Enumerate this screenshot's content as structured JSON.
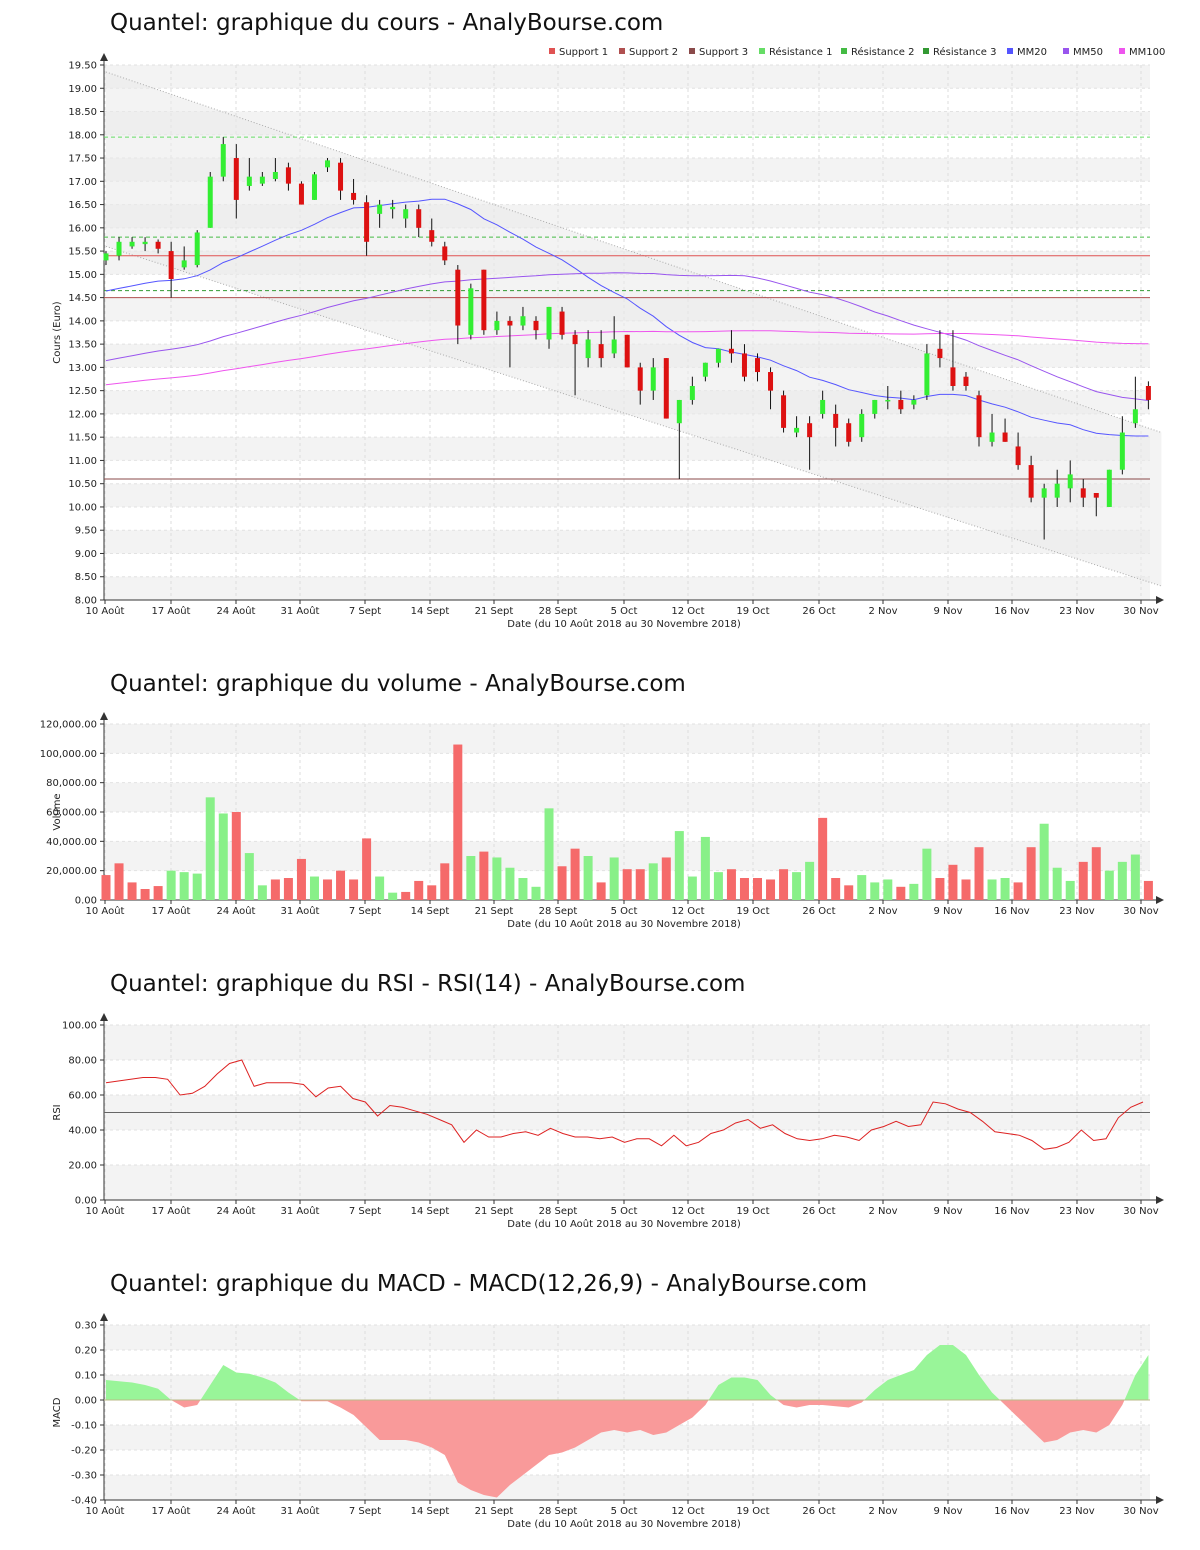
{
  "chart_data": [
    {
      "id": "price",
      "type": "candlestick",
      "title": "Quantel: graphique du cours - AnalyBourse.com",
      "ylabel": "Cours (Euro)",
      "xlabel": "Date (du 10 Août 2018 au 30 Novembre 2018)",
      "ylim": [
        8.0,
        19.5
      ],
      "yticks": [
        "19.50",
        "19.00",
        "18.50",
        "18.00",
        "17.50",
        "17.00",
        "16.50",
        "16.00",
        "15.50",
        "15.00",
        "14.50",
        "14.00",
        "13.50",
        "13.00",
        "12.50",
        "12.00",
        "11.50",
        "11.00",
        "10.50",
        "10.00",
        "9.50",
        "9.00",
        "8.50",
        "8.00"
      ],
      "xtick_labels": [
        "10 Août",
        "17 Août",
        "24 Août",
        "31 Août",
        "7 Sept",
        "14 Sept",
        "21 Sept",
        "28 Sept",
        "5 Oct",
        "12 Oct",
        "19 Oct",
        "26 Oct",
        "2 Nov",
        "9 Nov",
        "16 Nov",
        "23 Nov",
        "30 Nov"
      ],
      "legend": [
        {
          "name": "Support 1",
          "color": "#e05252"
        },
        {
          "name": "Support 2",
          "color": "#b05050"
        },
        {
          "name": "Support 3",
          "color": "#8a4a4a"
        },
        {
          "name": "Résistance 1",
          "color": "#66dd66"
        },
        {
          "name": "Résistance 2",
          "color": "#44bb44"
        },
        {
          "name": "Résistance 3",
          "color": "#339933"
        },
        {
          "name": "MM20",
          "color": "#5555ff"
        },
        {
          "name": "MM50",
          "color": "#9955ee"
        },
        {
          "name": "MM100",
          "color": "#ee55ee"
        }
      ],
      "legend_position": "top-right",
      "support_levels": [
        15.4,
        14.5,
        10.6
      ],
      "resistance_levels": [
        17.95,
        15.8,
        14.65
      ],
      "trend_channel": {
        "upper": [
          [
            0,
            19.35
          ],
          [
            81,
            11.6
          ]
        ],
        "lower": [
          [
            0,
            15.6
          ],
          [
            81,
            8.3
          ]
        ]
      },
      "candles": [
        [
          15.3,
          15.45,
          15.2,
          15.5
        ],
        [
          15.4,
          15.7,
          15.3,
          15.8
        ],
        [
          15.6,
          15.7,
          15.55,
          15.8
        ],
        [
          15.65,
          15.7,
          15.5,
          15.8
        ],
        [
          15.7,
          15.55,
          15.45,
          15.75
        ],
        [
          15.5,
          14.9,
          14.5,
          15.7
        ],
        [
          15.15,
          15.3,
          15.1,
          15.6
        ],
        [
          15.2,
          15.9,
          15.15,
          15.95
        ],
        [
          16.0,
          17.1,
          16.0,
          17.2
        ],
        [
          17.1,
          17.8,
          17.0,
          17.95
        ],
        [
          17.5,
          16.6,
          16.2,
          17.8
        ],
        [
          16.9,
          17.1,
          16.8,
          17.5
        ],
        [
          16.95,
          17.1,
          16.9,
          17.2
        ],
        [
          17.05,
          17.2,
          17.0,
          17.5
        ],
        [
          17.3,
          16.95,
          16.8,
          17.4
        ],
        [
          16.95,
          16.5,
          16.5,
          17.0
        ],
        [
          16.6,
          17.15,
          16.6,
          17.2
        ],
        [
          17.3,
          17.45,
          17.2,
          17.5
        ],
        [
          17.4,
          16.8,
          16.6,
          17.5
        ],
        [
          16.75,
          16.6,
          16.5,
          17.05
        ],
        [
          16.55,
          15.7,
          15.4,
          16.7
        ],
        [
          16.3,
          16.5,
          16.0,
          16.6
        ],
        [
          16.4,
          16.45,
          16.2,
          16.6
        ],
        [
          16.2,
          16.4,
          16.0,
          16.5
        ],
        [
          16.4,
          16.0,
          15.8,
          16.5
        ],
        [
          15.95,
          15.7,
          15.6,
          16.2
        ],
        [
          15.6,
          15.3,
          15.2,
          15.7
        ],
        [
          15.1,
          13.9,
          13.5,
          15.2
        ],
        [
          13.7,
          14.7,
          13.6,
          14.8
        ],
        [
          15.1,
          13.8,
          13.7,
          15.1
        ],
        [
          13.8,
          14.0,
          13.7,
          14.2
        ],
        [
          14.0,
          13.9,
          13.0,
          14.1
        ],
        [
          13.9,
          14.1,
          13.8,
          14.3
        ],
        [
          14.0,
          13.8,
          13.6,
          14.1
        ],
        [
          13.6,
          14.3,
          13.4,
          14.3
        ],
        [
          14.2,
          13.7,
          13.6,
          14.3
        ],
        [
          13.7,
          13.5,
          12.4,
          13.8
        ],
        [
          13.2,
          13.6,
          13.0,
          13.8
        ],
        [
          13.5,
          13.2,
          13.0,
          13.8
        ],
        [
          13.3,
          13.6,
          13.2,
          14.1
        ],
        [
          13.7,
          13.0,
          13.0,
          13.7
        ],
        [
          13.0,
          12.5,
          12.2,
          13.1
        ],
        [
          12.5,
          13.0,
          12.3,
          13.2
        ],
        [
          13.2,
          11.9,
          11.9,
          13.2
        ],
        [
          11.8,
          12.3,
          10.6,
          12.3
        ],
        [
          12.3,
          12.6,
          12.2,
          12.8
        ],
        [
          12.8,
          13.1,
          12.7,
          13.1
        ],
        [
          13.1,
          13.4,
          13.0,
          13.4
        ],
        [
          13.4,
          13.3,
          13.1,
          13.8
        ],
        [
          13.3,
          12.8,
          12.7,
          13.5
        ],
        [
          13.2,
          12.9,
          12.7,
          13.3
        ],
        [
          12.9,
          12.5,
          12.1,
          13.0
        ],
        [
          12.4,
          11.7,
          11.6,
          12.5
        ],
        [
          11.6,
          11.7,
          11.5,
          11.95
        ],
        [
          11.8,
          11.5,
          10.8,
          11.95
        ],
        [
          12.0,
          12.3,
          11.9,
          12.5
        ],
        [
          12.0,
          11.7,
          11.3,
          12.2
        ],
        [
          11.8,
          11.4,
          11.3,
          11.9
        ],
        [
          11.5,
          12.0,
          11.4,
          12.1
        ],
        [
          12.0,
          12.3,
          11.9,
          12.3
        ],
        [
          12.3,
          12.3,
          12.1,
          12.6
        ],
        [
          12.3,
          12.1,
          12.0,
          12.5
        ],
        [
          12.2,
          12.3,
          12.1,
          12.4
        ],
        [
          12.4,
          13.3,
          12.3,
          13.5
        ],
        [
          13.4,
          13.2,
          13.0,
          13.8
        ],
        [
          13.0,
          12.6,
          12.5,
          13.8
        ],
        [
          12.8,
          12.6,
          12.5,
          12.9
        ],
        [
          12.4,
          11.5,
          11.3,
          12.5
        ],
        [
          11.4,
          11.6,
          11.3,
          12.0
        ],
        [
          11.6,
          11.4,
          11.4,
          11.9
        ],
        [
          11.3,
          10.9,
          10.8,
          11.6
        ],
        [
          10.9,
          10.2,
          10.1,
          11.1
        ],
        [
          10.2,
          10.4,
          9.3,
          10.5
        ],
        [
          10.2,
          10.5,
          10.0,
          10.8
        ],
        [
          10.4,
          10.7,
          10.1,
          11.0
        ],
        [
          10.4,
          10.2,
          10.0,
          10.6
        ],
        [
          10.3,
          10.2,
          9.8,
          10.3
        ],
        [
          10.0,
          10.8,
          10.0,
          10.8
        ],
        [
          10.8,
          11.6,
          10.7,
          11.95
        ],
        [
          11.8,
          12.1,
          11.7,
          12.8
        ],
        [
          12.6,
          12.3,
          12.1,
          12.7
        ]
      ]
    },
    {
      "id": "volume",
      "type": "bar",
      "title": "Quantel: graphique du volume - AnalyBourse.com",
      "ylabel": "Volume",
      "xlabel": "Date (du 10 Août 2018 au 30 Novembre 2018)",
      "ylim": [
        0,
        120000
      ],
      "yticks": [
        "120,000.00",
        "100,000.00",
        "80,000.00",
        "60,000.00",
        "40,000.00",
        "20,000.00",
        "0.00"
      ],
      "xtick_labels": [
        "10 Août",
        "17 Août",
        "24 Août",
        "31 Août",
        "7 Sept",
        "14 Sept",
        "21 Sept",
        "28 Sept",
        "5 Oct",
        "12 Oct",
        "19 Oct",
        "26 Oct",
        "2 Nov",
        "9 Nov",
        "16 Nov",
        "23 Nov",
        "30 Nov"
      ],
      "values": [
        17000,
        25000,
        12000,
        7500,
        9500,
        20000,
        19000,
        18000,
        70000,
        59000,
        60000,
        32000,
        10000,
        14000,
        15000,
        28000,
        16000,
        14000,
        20000,
        14000,
        42000,
        16000,
        5000,
        5500,
        13000,
        10000,
        25000,
        106000,
        30000,
        33000,
        29000,
        22000,
        15000,
        9000,
        62500,
        23000,
        35000,
        30000,
        12000,
        29000,
        21000,
        21000,
        25000,
        29000,
        47000,
        16000,
        43000,
        19000,
        21000,
        15000,
        15000,
        14000,
        21000,
        19000,
        26000,
        56000,
        15000,
        10000,
        17000,
        12000,
        14000,
        9000,
        11000,
        35000,
        15000,
        24000,
        14000,
        36000,
        14000,
        15000,
        12000,
        36000,
        52000,
        22000,
        13000,
        26000,
        36000,
        20000,
        26000,
        31000,
        13000
      ],
      "up": [
        false,
        false,
        false,
        false,
        false,
        true,
        true,
        true,
        true,
        true,
        false,
        true,
        true,
        false,
        false,
        false,
        true,
        false,
        false,
        false,
        false,
        true,
        true,
        false,
        false,
        false,
        false,
        false,
        true,
        false,
        true,
        true,
        true,
        true,
        true,
        false,
        false,
        true,
        false,
        true,
        false,
        false,
        true,
        false,
        true,
        true,
        true,
        true,
        false,
        false,
        false,
        false,
        false,
        true,
        true,
        false,
        false,
        false,
        true,
        true,
        true,
        false,
        true,
        true,
        false,
        false,
        false,
        false,
        true,
        true,
        false,
        false,
        true,
        true,
        true,
        false,
        false,
        true,
        true,
        true,
        false
      ]
    },
    {
      "id": "rsi",
      "type": "line",
      "title": "Quantel: graphique du RSI - RSI(14) - AnalyBourse.com",
      "ylabel": "RSI",
      "xlabel": "Date (du 10 Août 2018 au 30 Novembre 2018)",
      "ylim": [
        0,
        100
      ],
      "yticks": [
        "100.00",
        "80.00",
        "60.00",
        "40.00",
        "20.00",
        "0.00"
      ],
      "xtick_labels": [
        "10 Août",
        "17 Août",
        "24 Août",
        "31 Août",
        "7 Sept",
        "14 Sept",
        "21 Sept",
        "28 Sept",
        "5 Oct",
        "12 Oct",
        "19 Oct",
        "26 Oct",
        "2 Nov",
        "9 Nov",
        "16 Nov",
        "23 Nov",
        "30 Nov"
      ],
      "reference_line": 50,
      "values": [
        67,
        68,
        69,
        70,
        70,
        69,
        60,
        61,
        65,
        72,
        78,
        80,
        65,
        67,
        67,
        67,
        66,
        59,
        64,
        65,
        58,
        56,
        48,
        54,
        53,
        51,
        49,
        46,
        43,
        33,
        40,
        36,
        36,
        38,
        39,
        37,
        41,
        38,
        36,
        36,
        35,
        36,
        33,
        35,
        35,
        31,
        37,
        31,
        33,
        38,
        40,
        44,
        46,
        41,
        43,
        38,
        35,
        34,
        35,
        37,
        36,
        34,
        40,
        42,
        45,
        42,
        43,
        56,
        55,
        52,
        50,
        45,
        39,
        38,
        37,
        34,
        29,
        30,
        33,
        40,
        34,
        35,
        47,
        53,
        56
      ]
    },
    {
      "id": "macd",
      "type": "area",
      "title": "Quantel: graphique du MACD - MACD(12,26,9) - AnalyBourse.com",
      "ylabel": "MACD",
      "xlabel": "Date (du 10 Août 2018 au 30 Novembre 2018)",
      "ylim": [
        -0.4,
        0.3
      ],
      "yticks": [
        "0.30",
        "0.20",
        "0.10",
        "0.00",
        "-0.10",
        "-0.20",
        "-0.30",
        "-0.40"
      ],
      "xtick_labels": [
        "10 Août",
        "17 Août",
        "24 Août",
        "31 Août",
        "7 Sept",
        "14 Sept",
        "21 Sept",
        "28 Sept",
        "5 Oct",
        "12 Oct",
        "19 Oct",
        "26 Oct",
        "2 Nov",
        "9 Nov",
        "16 Nov",
        "23 Nov",
        "30 Nov"
      ],
      "values": [
        0.08,
        0.075,
        0.07,
        0.06,
        0.045,
        0.0,
        -0.03,
        -0.02,
        0.06,
        0.14,
        0.11,
        0.105,
        0.09,
        0.07,
        0.03,
        -0.005,
        -0.005,
        -0.005,
        -0.03,
        -0.06,
        -0.11,
        -0.16,
        -0.16,
        -0.16,
        -0.17,
        -0.19,
        -0.22,
        -0.33,
        -0.36,
        -0.38,
        -0.39,
        -0.34,
        -0.3,
        -0.26,
        -0.22,
        -0.21,
        -0.19,
        -0.16,
        -0.13,
        -0.12,
        -0.13,
        -0.12,
        -0.14,
        -0.13,
        -0.1,
        -0.07,
        -0.02,
        0.06,
        0.09,
        0.09,
        0.08,
        0.02,
        -0.02,
        -0.03,
        -0.02,
        -0.02,
        -0.025,
        -0.03,
        -0.01,
        0.04,
        0.08,
        0.1,
        0.12,
        0.18,
        0.22,
        0.22,
        0.18,
        0.1,
        0.03,
        -0.02,
        -0.07,
        -0.12,
        -0.17,
        -0.16,
        -0.13,
        -0.12,
        -0.13,
        -0.1,
        -0.02,
        0.1,
        0.18
      ]
    }
  ]
}
